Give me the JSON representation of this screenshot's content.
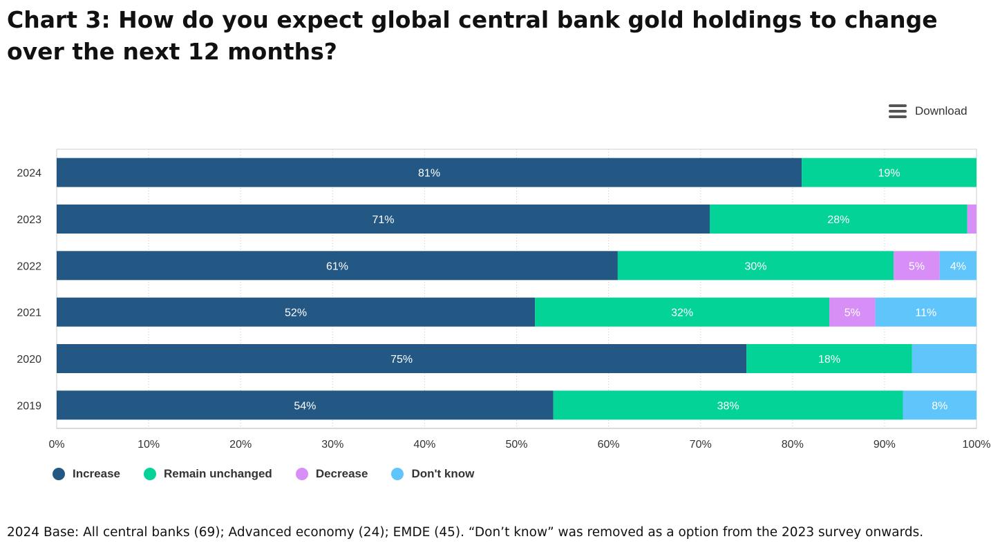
{
  "page": {
    "title": "Chart 3: How do you expect global central bank gold holdings to change over the next 12 months?",
    "download_label": "Download",
    "footnote": "2024 Base: All central banks (69); Advanced economy (24); EMDE (45). “Don’t know” was removed as a option from the 2023 survey onwards."
  },
  "chart_data": {
    "type": "bar",
    "orientation": "horizontal",
    "stacked": true,
    "percent_stacked": true,
    "categories": [
      "2024",
      "2023",
      "2022",
      "2021",
      "2020",
      "2019"
    ],
    "series": [
      {
        "name": "Increase",
        "color": "#235784",
        "values": [
          81,
          71,
          61,
          52,
          75,
          54
        ],
        "labels": [
          "81%",
          "71%",
          "61%",
          "52%",
          "75%",
          "54%"
        ]
      },
      {
        "name": "Remain unchanged",
        "color": "#03d396",
        "values": [
          19,
          28,
          30,
          32,
          18,
          38
        ],
        "labels": [
          "19%",
          "28%",
          "30%",
          "32%",
          "18%",
          "38%"
        ]
      },
      {
        "name": "Decrease",
        "color": "#d78ef7",
        "values": [
          0,
          1,
          5,
          5,
          0,
          0
        ],
        "labels": [
          "",
          "",
          "5%",
          "5%",
          "",
          ""
        ]
      },
      {
        "name": "Don't know",
        "color": "#60c5fb",
        "values": [
          0,
          0,
          4,
          11,
          7,
          8
        ],
        "labels": [
          "",
          "",
          "4%",
          "11%",
          "",
          "8%"
        ]
      }
    ],
    "xlim": [
      0,
      100
    ],
    "xticks": [
      0,
      10,
      20,
      30,
      40,
      50,
      60,
      70,
      80,
      90,
      100
    ],
    "xtick_labels": [
      "0%",
      "10%",
      "20%",
      "30%",
      "40%",
      "50%",
      "60%",
      "70%",
      "80%",
      "90%",
      "100%"
    ],
    "grid": "vertical dotted",
    "legend_position": "bottom-left"
  }
}
